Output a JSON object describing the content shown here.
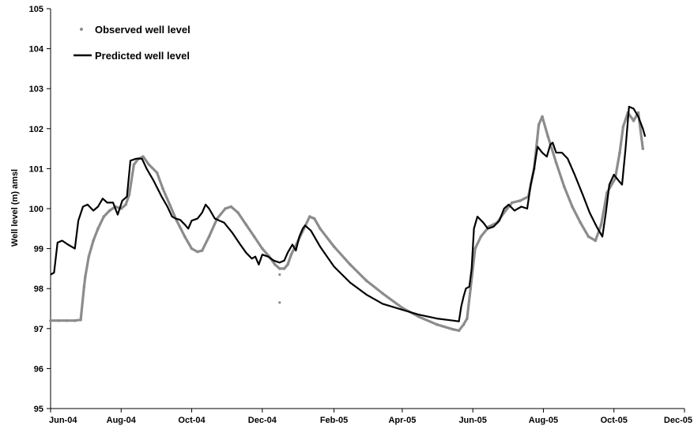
{
  "chart_data": {
    "type": "line",
    "title": "",
    "xlabel": "",
    "ylabel": "Well level (m) amsl",
    "ylim": [
      95,
      105
    ],
    "y_ticks": [
      95,
      96,
      97,
      98,
      99,
      100,
      101,
      102,
      103,
      104,
      105
    ],
    "xlim": [
      "2004-06-01",
      "2005-12-01"
    ],
    "x_ticks": [
      {
        "date": "2004-06-01",
        "label": "Jun-04"
      },
      {
        "date": "2004-08-01",
        "label": "Aug-04"
      },
      {
        "date": "2004-10-01",
        "label": "Oct-04"
      },
      {
        "date": "2004-12-01",
        "label": "Dec-04"
      },
      {
        "date": "2005-02-01",
        "label": "Feb-05"
      },
      {
        "date": "2005-04-01",
        "label": "Apr-05"
      },
      {
        "date": "2005-06-01",
        "label": "Jun-05"
      },
      {
        "date": "2005-08-01",
        "label": "Aug-05"
      },
      {
        "date": "2005-10-01",
        "label": "Oct-05"
      },
      {
        "date": "2005-12-01",
        "label": "Dec-05"
      }
    ],
    "grid": false,
    "legend_position": "top-left",
    "series": [
      {
        "name": "Observed well level",
        "style": "markers",
        "color": "#8c8c8c",
        "points": [
          [
            "2004-06-01",
            97.2
          ],
          [
            "2004-06-08",
            97.2
          ],
          [
            "2004-06-15",
            97.2
          ],
          [
            "2004-06-22",
            97.2
          ],
          [
            "2004-06-27",
            97.22
          ],
          [
            "2004-06-30",
            98.05
          ],
          [
            "2004-07-01",
            98.3
          ],
          [
            "2004-07-04",
            98.8
          ],
          [
            "2004-07-08",
            99.2
          ],
          [
            "2004-07-12",
            99.5
          ],
          [
            "2004-07-17",
            99.8
          ],
          [
            "2004-07-22",
            99.95
          ],
          [
            "2004-07-27",
            100.05
          ],
          [
            "2004-08-01",
            100.0
          ],
          [
            "2004-08-05",
            100.1
          ],
          [
            "2004-08-08",
            100.35
          ],
          [
            "2004-08-12",
            101.1
          ],
          [
            "2004-08-16",
            101.25
          ],
          [
            "2004-08-20",
            101.3
          ],
          [
            "2004-08-25",
            101.1
          ],
          [
            "2004-09-01",
            100.9
          ],
          [
            "2004-09-06",
            100.5
          ],
          [
            "2004-09-12",
            100.1
          ],
          [
            "2004-09-18",
            99.7
          ],
          [
            "2004-09-25",
            99.3
          ],
          [
            "2004-10-01",
            99.0
          ],
          [
            "2004-10-06",
            98.92
          ],
          [
            "2004-10-10",
            98.95
          ],
          [
            "2004-10-16",
            99.3
          ],
          [
            "2004-10-23",
            99.75
          ],
          [
            "2004-10-30",
            100.0
          ],
          [
            "2004-11-04",
            100.05
          ],
          [
            "2004-11-10",
            99.9
          ],
          [
            "2004-11-17",
            99.6
          ],
          [
            "2004-11-24",
            99.3
          ],
          [
            "2004-12-01",
            99.0
          ],
          [
            "2004-12-07",
            98.8
          ],
          [
            "2004-12-12",
            98.6
          ],
          [
            "2004-12-16",
            98.5
          ],
          [
            "2004-12-20",
            98.5
          ],
          [
            "2004-12-23",
            98.6
          ],
          [
            "2004-12-26",
            98.85
          ],
          [
            "2005-01-01",
            99.2
          ],
          [
            "2005-01-06",
            99.5
          ],
          [
            "2005-01-11",
            99.8
          ],
          [
            "2005-01-15",
            99.75
          ],
          [
            "2005-01-20",
            99.5
          ],
          [
            "2005-02-01",
            99.05
          ],
          [
            "2005-02-15",
            98.6
          ],
          [
            "2005-03-01",
            98.2
          ],
          [
            "2005-03-15",
            97.88
          ],
          [
            "2005-04-01",
            97.52
          ],
          [
            "2005-04-15",
            97.3
          ],
          [
            "2005-05-01",
            97.1
          ],
          [
            "2005-05-15",
            96.98
          ],
          [
            "2005-05-20",
            96.95
          ],
          [
            "2005-05-24",
            97.1
          ],
          [
            "2005-05-27",
            97.25
          ],
          [
            "2005-05-30",
            98.0
          ],
          [
            "2005-06-03",
            99.0
          ],
          [
            "2005-06-08",
            99.3
          ],
          [
            "2005-06-15",
            99.55
          ],
          [
            "2005-06-22",
            99.65
          ],
          [
            "2005-06-28",
            99.9
          ],
          [
            "2005-07-05",
            100.15
          ],
          [
            "2005-07-12",
            100.2
          ],
          [
            "2005-07-19",
            100.3
          ],
          [
            "2005-07-24",
            101.0
          ],
          [
            "2005-07-28",
            102.1
          ],
          [
            "2005-07-31",
            102.3
          ],
          [
            "2005-08-05",
            101.8
          ],
          [
            "2005-08-12",
            101.15
          ],
          [
            "2005-08-19",
            100.55
          ],
          [
            "2005-08-26",
            100.05
          ],
          [
            "2005-09-02",
            99.65
          ],
          [
            "2005-09-09",
            99.3
          ],
          [
            "2005-09-15",
            99.2
          ],
          [
            "2005-09-20",
            99.6
          ],
          [
            "2005-09-25",
            100.4
          ],
          [
            "2005-10-02",
            100.75
          ],
          [
            "2005-10-06",
            101.4
          ],
          [
            "2005-10-09",
            102.05
          ],
          [
            "2005-10-13",
            102.4
          ],
          [
            "2005-10-18",
            102.2
          ],
          [
            "2005-10-22",
            102.4
          ],
          [
            "2005-10-26",
            101.5
          ]
        ],
        "outliers": [
          [
            "2004-12-16",
            98.35
          ],
          [
            "2004-12-16",
            97.65
          ]
        ]
      },
      {
        "name": "Predicted well level",
        "style": "line",
        "color": "#000000",
        "points": [
          [
            "2004-06-01",
            98.35
          ],
          [
            "2004-06-04",
            98.4
          ],
          [
            "2004-06-07",
            99.15
          ],
          [
            "2004-06-11",
            99.2
          ],
          [
            "2004-06-16",
            99.1
          ],
          [
            "2004-06-22",
            99.0
          ],
          [
            "2004-06-25",
            99.7
          ],
          [
            "2004-06-29",
            100.05
          ],
          [
            "2004-07-03",
            100.1
          ],
          [
            "2004-07-08",
            99.95
          ],
          [
            "2004-07-12",
            100.05
          ],
          [
            "2004-07-16",
            100.25
          ],
          [
            "2004-07-20",
            100.15
          ],
          [
            "2004-07-25",
            100.15
          ],
          [
            "2004-07-29",
            99.85
          ],
          [
            "2004-08-02",
            100.2
          ],
          [
            "2004-08-06",
            100.3
          ],
          [
            "2004-08-09",
            101.2
          ],
          [
            "2004-08-14",
            101.25
          ],
          [
            "2004-08-19",
            101.25
          ],
          [
            "2004-08-23",
            101.0
          ],
          [
            "2004-08-29",
            100.7
          ],
          [
            "2004-09-05",
            100.3
          ],
          [
            "2004-09-10",
            100.05
          ],
          [
            "2004-09-14",
            99.8
          ],
          [
            "2004-09-17",
            99.75
          ],
          [
            "2004-09-21",
            99.72
          ],
          [
            "2004-09-25",
            99.6
          ],
          [
            "2004-09-28",
            99.5
          ],
          [
            "2004-10-01",
            99.7
          ],
          [
            "2004-10-06",
            99.75
          ],
          [
            "2004-10-10",
            99.9
          ],
          [
            "2004-10-13",
            100.1
          ],
          [
            "2004-10-16",
            100.0
          ],
          [
            "2004-10-21",
            99.75
          ],
          [
            "2004-10-25",
            99.7
          ],
          [
            "2004-10-29",
            99.65
          ],
          [
            "2004-11-05",
            99.4
          ],
          [
            "2004-11-12",
            99.1
          ],
          [
            "2004-11-17",
            98.9
          ],
          [
            "2004-11-22",
            98.75
          ],
          [
            "2004-11-25",
            98.8
          ],
          [
            "2004-11-28",
            98.6
          ],
          [
            "2004-12-01",
            98.85
          ],
          [
            "2004-12-06",
            98.8
          ],
          [
            "2004-12-11",
            98.7
          ],
          [
            "2004-12-16",
            98.65
          ],
          [
            "2004-12-20",
            98.7
          ],
          [
            "2004-12-23",
            98.9
          ],
          [
            "2004-12-27",
            99.1
          ],
          [
            "2004-12-30",
            98.95
          ],
          [
            "2005-01-02",
            99.3
          ],
          [
            "2005-01-05",
            99.5
          ],
          [
            "2005-01-07",
            99.58
          ],
          [
            "2005-01-12",
            99.45
          ],
          [
            "2005-01-20",
            99.05
          ],
          [
            "2005-02-01",
            98.55
          ],
          [
            "2005-02-15",
            98.15
          ],
          [
            "2005-03-01",
            97.85
          ],
          [
            "2005-03-15",
            97.62
          ],
          [
            "2005-04-01",
            97.47
          ],
          [
            "2005-04-15",
            97.35
          ],
          [
            "2005-05-01",
            97.25
          ],
          [
            "2005-05-15",
            97.2
          ],
          [
            "2005-05-20",
            97.18
          ],
          [
            "2005-05-22",
            97.55
          ],
          [
            "2005-05-24",
            97.8
          ],
          [
            "2005-05-26",
            98.0
          ],
          [
            "2005-05-29",
            98.05
          ],
          [
            "2005-05-31",
            98.5
          ],
          [
            "2005-06-02",
            99.5
          ],
          [
            "2005-06-05",
            99.8
          ],
          [
            "2005-06-10",
            99.65
          ],
          [
            "2005-06-14",
            99.5
          ],
          [
            "2005-06-19",
            99.55
          ],
          [
            "2005-06-24",
            99.7
          ],
          [
            "2005-06-28",
            100.0
          ],
          [
            "2005-07-02",
            100.1
          ],
          [
            "2005-07-07",
            99.95
          ],
          [
            "2005-07-13",
            100.05
          ],
          [
            "2005-07-18",
            100.0
          ],
          [
            "2005-07-21",
            100.6
          ],
          [
            "2005-07-24",
            101.0
          ],
          [
            "2005-07-27",
            101.55
          ],
          [
            "2005-07-31",
            101.4
          ],
          [
            "2005-08-04",
            101.3
          ],
          [
            "2005-08-07",
            101.6
          ],
          [
            "2005-08-09",
            101.65
          ],
          [
            "2005-08-12",
            101.4
          ],
          [
            "2005-08-17",
            101.4
          ],
          [
            "2005-08-22",
            101.25
          ],
          [
            "2005-08-28",
            100.85
          ],
          [
            "2005-09-04",
            100.35
          ],
          [
            "2005-09-10",
            99.9
          ],
          [
            "2005-09-16",
            99.55
          ],
          [
            "2005-09-21",
            99.3
          ],
          [
            "2005-09-24",
            99.9
          ],
          [
            "2005-09-27",
            100.6
          ],
          [
            "2005-10-01",
            100.85
          ],
          [
            "2005-10-05",
            100.7
          ],
          [
            "2005-10-08",
            100.6
          ],
          [
            "2005-10-11",
            101.5
          ],
          [
            "2005-10-14",
            102.55
          ],
          [
            "2005-10-18",
            102.5
          ],
          [
            "2005-10-22",
            102.3
          ],
          [
            "2005-10-26",
            102.0
          ],
          [
            "2005-10-28",
            101.8
          ]
        ]
      }
    ]
  }
}
